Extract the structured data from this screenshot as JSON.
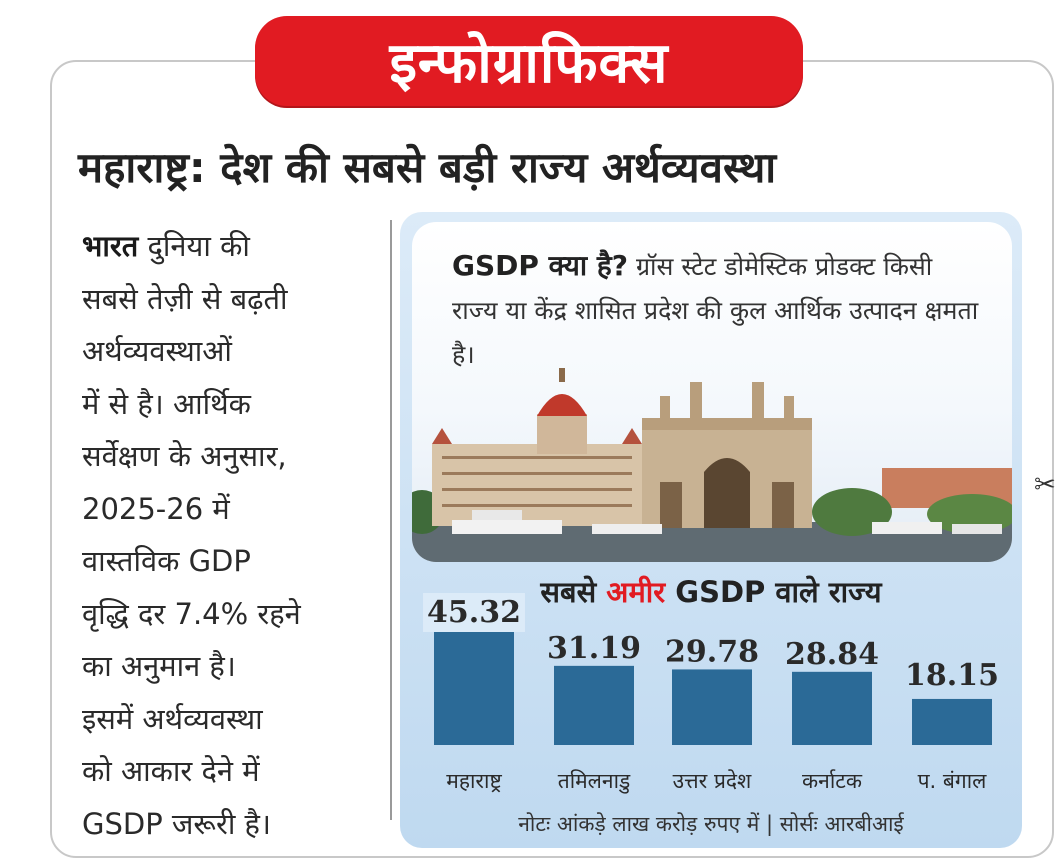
{
  "banner": {
    "title": "इन्फोग्राफिक्स"
  },
  "headline": "महाराष्ट्र: देश की सबसे बड़ी राज्य अर्थव्यवस्था",
  "body": {
    "lead": "भारत",
    "lines": [
      " दुनिया की",
      "सबसे तेज़ी से बढ़ती",
      "अर्थव्यवस्थाओं",
      "में से है। आर्थिक",
      "सर्वेक्षण के अनुसार,",
      "2025-26 में",
      "वास्तविक GDP",
      "वृद्धि दर 7.4% रहने",
      "का अनुमान है।",
      "इसमें अर्थव्यवस्था",
      "को आकार देने में",
      "GSDP जरूरी है।"
    ]
  },
  "gsdp_box": {
    "question": "GSDP क्या है?",
    "answer": " ग्रॉस स्टेट डोमेस्टिक प्रोडक्ट किसी राज्य या केंद्र शासित प्रदेश की कुल आर्थिक उत्पादन क्षमता है।"
  },
  "chart_title": {
    "part1": "सबसे ",
    "part2": "अमीर",
    "part3": " GSDP वाले राज्य"
  },
  "note": "नोटः आंकड़े लाख करोड़ रुपए में | सोर्सः आरबीआई",
  "colors": {
    "banner": "#e11b22",
    "bar": "#2b6a97",
    "panel": "#cfe3f5",
    "accent_red": "#e11b22"
  },
  "chart_data": {
    "type": "bar",
    "categories": [
      "महाराष्ट्र",
      "तमिलनाडु",
      "उत्तर प्रदेश",
      "कर्नाटक",
      "प. बंगाल"
    ],
    "values": [
      45.32,
      31.19,
      29.78,
      28.84,
      18.15
    ],
    "value_labels": [
      "45.32",
      "31.19",
      "29.78",
      "28.84",
      "18.15"
    ],
    "title": "सबसे अमीर GSDP वाले राज्य",
    "xlabel": "",
    "ylabel": "",
    "ylim": [
      0,
      45.32
    ],
    "grid": false,
    "legend": "none"
  }
}
